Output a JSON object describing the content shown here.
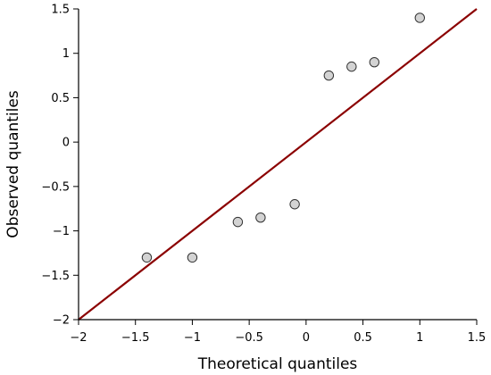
{
  "chart_data": {
    "type": "scatter",
    "xlabel": "Theoretical quantiles",
    "ylabel": "Observed quantiles",
    "xlim": [
      -2,
      1.5
    ],
    "ylim": [
      -2,
      1.5
    ],
    "x_ticks": [
      -2,
      -1.5,
      -1,
      -0.5,
      0,
      0.5,
      1,
      1.5
    ],
    "y_ticks": [
      -2,
      -1.5,
      -1,
      -0.5,
      0,
      0.5,
      1,
      1.5
    ],
    "x_tick_labels": [
      "−2",
      "−1.5",
      "−1",
      "−0.5",
      "0",
      "0.5",
      "1",
      "1.5"
    ],
    "y_tick_labels": [
      "−2",
      "−1.5",
      "−1",
      "−0.5",
      "0",
      "0.5",
      "1",
      "1.5"
    ],
    "points": [
      {
        "x": -1.4,
        "y": -1.3
      },
      {
        "x": -1.0,
        "y": -1.3
      },
      {
        "x": -0.6,
        "y": -0.9
      },
      {
        "x": -0.4,
        "y": -0.85
      },
      {
        "x": -0.1,
        "y": -0.7
      },
      {
        "x": 0.2,
        "y": 0.75
      },
      {
        "x": 0.4,
        "y": 0.85
      },
      {
        "x": 0.6,
        "y": 0.9
      },
      {
        "x": 1.0,
        "y": 1.4
      }
    ],
    "reference_line": {
      "x": [
        -2,
        1.5
      ],
      "y": [
        -2,
        1.5
      ]
    },
    "grid": false,
    "colors": {
      "point_fill": "#d3d3d3",
      "point_stroke": "#333333",
      "line": "#8b0000"
    }
  }
}
